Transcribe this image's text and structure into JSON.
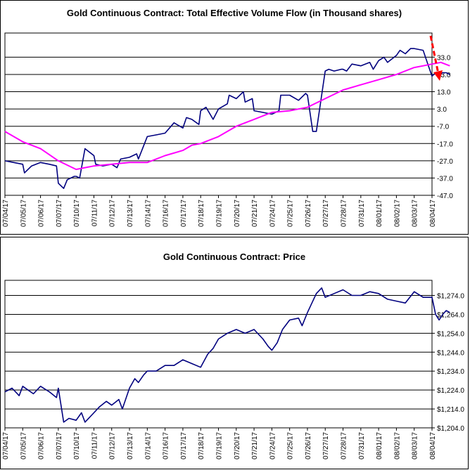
{
  "chart_data": [
    {
      "type": "line",
      "title": "Gold Continuous Contract: Total Effective Volume Flow (in Thousand shares)",
      "categories": [
        "07/04/17",
        "07/05/17",
        "07/06/17",
        "07/07/17",
        "07/10/17",
        "07/11/17",
        "07/12/17",
        "07/13/17",
        "07/14/17",
        "07/16/17",
        "07/17/17",
        "07/18/17",
        "07/19/17",
        "07/20/17",
        "07/21/17",
        "07/24/17",
        "07/25/17",
        "07/26/17",
        "07/27/17",
        "07/28/17",
        "07/31/17",
        "08/01/17",
        "08/02/17",
        "08/03/17",
        "08/04/17"
      ],
      "y_ticks": [
        "33.0",
        "23.0",
        "13.0",
        "3.0",
        "-7.0",
        "-17.0",
        "-27.0",
        "-37.0",
        "-47.0"
      ],
      "ylim": [
        -47,
        47
      ],
      "grid": true,
      "series": [
        {
          "color": "#00007F",
          "x": [
            0,
            0.5,
            1,
            1.1,
            1.5,
            2,
            2.5,
            2.9,
            3,
            3.3,
            3.5,
            3.9,
            4,
            4.2,
            4.5,
            5,
            5.1,
            5.5,
            6,
            6.3,
            6.5,
            7,
            7.4,
            7.5,
            8,
            8.5,
            9,
            9.5,
            10,
            10.2,
            10.5,
            10.9,
            11,
            11.3,
            11.7,
            12,
            12.5,
            12.6,
            13,
            13.4,
            13.5,
            13.9,
            14,
            14.5,
            15,
            15.4,
            15.5,
            16,
            16.5,
            16.9,
            17,
            17.3,
            17.5,
            18,
            18.2,
            18.5,
            18.9,
            19,
            19.2,
            19.5,
            20,
            20.5,
            20.7,
            21,
            21.3,
            21.5,
            22,
            22.2,
            22.5,
            22.8,
            23,
            23.5,
            23.8,
            24,
            24.2,
            24.5,
            24.6,
            24.8,
            25
          ],
          "y": [
            -27,
            -28,
            -29,
            -34,
            -30,
            -28,
            -29,
            -30,
            -40,
            -43,
            -38,
            -36,
            -36,
            -37,
            -20,
            -24,
            -29,
            -30,
            -29,
            -31,
            -26,
            -25,
            -23,
            -26,
            -13,
            -12,
            -11,
            -5,
            -8,
            -2,
            -3,
            -6,
            2,
            4,
            -3,
            3,
            6,
            11,
            9,
            13,
            7,
            9,
            2,
            1,
            0,
            2,
            11,
            11,
            8,
            12,
            11,
            -10,
            -10,
            25,
            26,
            25,
            26,
            26,
            25,
            29,
            28,
            30,
            26,
            31,
            33,
            30,
            34,
            37,
            35,
            38,
            38,
            37,
            28,
            22,
            24,
            23,
            24,
            24,
            23
          ]
        },
        {
          "color": "#FF00FF",
          "x": [
            0,
            1,
            2,
            3,
            4,
            5,
            6,
            7,
            8,
            9,
            10,
            10.5,
            11,
            12,
            13,
            14,
            15,
            16,
            17,
            18,
            19,
            20,
            21,
            22,
            23,
            23.5,
            24,
            24.5,
            25
          ],
          "y": [
            -10,
            -16,
            -20,
            -27,
            -32,
            -30,
            -29,
            -28,
            -28,
            -24,
            -21,
            -18,
            -17,
            -13,
            -7,
            -3,
            1,
            2,
            4,
            9,
            14,
            17,
            20,
            23,
            27,
            28,
            29,
            30,
            28
          ]
        }
      ]
    },
    {
      "type": "line",
      "title": "Gold Continuous Contract: Price",
      "categories": [
        "07/04/17",
        "07/05/17",
        "07/06/17",
        "07/07/17",
        "07/10/17",
        "07/11/17",
        "07/12/17",
        "07/13/17",
        "07/14/17",
        "07/16/17",
        "07/17/17",
        "07/18/17",
        "07/19/17",
        "07/20/17",
        "07/21/17",
        "07/24/17",
        "07/25/17",
        "07/26/17",
        "07/27/17",
        "07/28/17",
        "07/31/17",
        "08/01/17",
        "08/02/17",
        "08/03/17",
        "08/04/17"
      ],
      "y_ticks": [
        "$1,274.0",
        "$1,264.0",
        "$1,254.0",
        "$1,244.0",
        "$1,234.0",
        "$1,224.0",
        "$1,214.0",
        "$1,204.0"
      ],
      "ylim": [
        1204,
        1282
      ],
      "grid": true,
      "series": [
        {
          "color": "#00007F",
          "x": [
            0,
            0.4,
            0.8,
            1,
            1.3,
            1.6,
            2,
            2.5,
            2.9,
            3,
            3.3,
            3.6,
            4,
            4.3,
            4.5,
            5,
            5.3,
            5.7,
            6,
            6.4,
            6.6,
            7,
            7.3,
            7.5,
            7.8,
            8,
            8.5,
            9,
            9.5,
            10,
            10.5,
            11,
            11.4,
            11.7,
            12,
            12.5,
            13,
            13.5,
            14,
            14.5,
            14.8,
            15,
            15.3,
            15.6,
            16,
            16.5,
            16.7,
            17,
            17.5,
            17.8,
            18,
            18.5,
            19,
            19.5,
            20,
            20.5,
            21,
            21.5,
            22,
            22.5,
            23,
            23.5,
            24,
            24.2,
            24.4,
            24.6,
            24.8,
            25
          ],
          "y": [
            1223,
            1225,
            1221,
            1226,
            1224,
            1222,
            1226,
            1223,
            1220,
            1225,
            1207,
            1209,
            1208,
            1212,
            1207,
            1212,
            1215,
            1218,
            1216,
            1219,
            1214,
            1225,
            1230,
            1228,
            1232,
            1234,
            1234,
            1237,
            1237,
            1240,
            1238,
            1236,
            1243,
            1246,
            1251,
            1254,
            1256,
            1254,
            1256,
            1251,
            1247,
            1245,
            1249,
            1256,
            1261,
            1262,
            1258,
            1265,
            1275,
            1278,
            1273,
            1275,
            1277,
            1274,
            1274,
            1276,
            1275,
            1272,
            1271,
            1270,
            1276,
            1273,
            1273,
            1264,
            1261,
            1264,
            1266,
            1265
          ]
        }
      ]
    }
  ]
}
